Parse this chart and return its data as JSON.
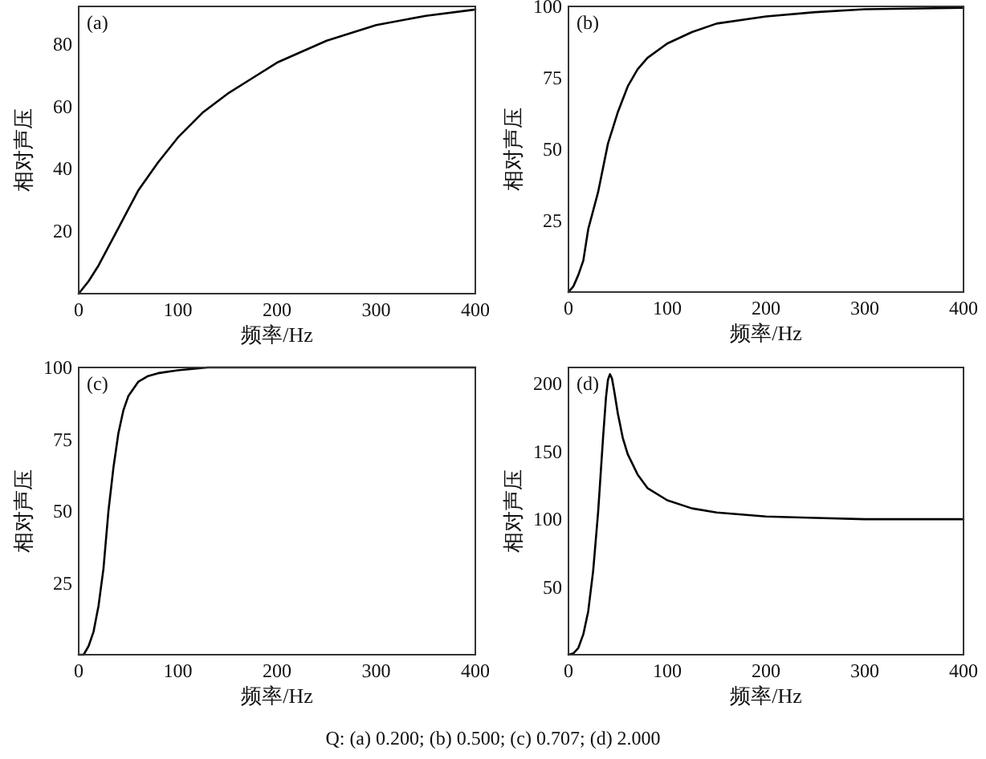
{
  "chart_data": [
    {
      "type": "line",
      "title": "(a)",
      "xlabel": "频率/Hz",
      "ylabel": "相对声压",
      "color": "#000000",
      "xlim": [
        0,
        400
      ],
      "ylim": [
        0,
        92
      ],
      "xticks": [
        0,
        100,
        200,
        300,
        400
      ],
      "yticks": [
        20,
        40,
        60,
        80
      ],
      "x": [
        0,
        10,
        20,
        30,
        40,
        50,
        60,
        80,
        100,
        125,
        150,
        175,
        200,
        250,
        300,
        350,
        400
      ],
      "values": [
        0,
        4,
        9,
        15,
        21,
        27,
        33,
        42,
        50,
        58,
        64,
        69,
        74,
        81,
        86,
        89,
        91
      ]
    },
    {
      "type": "line",
      "title": "(b)",
      "xlabel": "频率/Hz",
      "ylabel": "相对声压",
      "color": "#000000",
      "xlim": [
        0,
        400
      ],
      "ylim": [
        0,
        100
      ],
      "xticks": [
        0,
        100,
        200,
        300,
        400
      ],
      "yticks": [
        25,
        50,
        75,
        100
      ],
      "x": [
        0,
        5,
        10,
        15,
        20,
        30,
        40,
        50,
        60,
        70,
        80,
        100,
        125,
        150,
        200,
        250,
        300,
        400
      ],
      "values": [
        0,
        2,
        6,
        11,
        22,
        35,
        52,
        63,
        72,
        78,
        82,
        87,
        91,
        94,
        96.5,
        98,
        99,
        99.5
      ]
    },
    {
      "type": "line",
      "title": "(c)",
      "xlabel": "频率/Hz",
      "ylabel": "相对声压",
      "color": "#000000",
      "xlim": [
        0,
        400
      ],
      "ylim": [
        0,
        100
      ],
      "xticks": [
        0,
        100,
        200,
        300,
        400
      ],
      "yticks": [
        25,
        50,
        75,
        100
      ],
      "x": [
        0,
        5,
        10,
        15,
        20,
        25,
        30,
        35,
        40,
        45,
        50,
        60,
        70,
        80,
        100,
        130,
        400
      ],
      "values": [
        0,
        0,
        3,
        8,
        17,
        30,
        50,
        65,
        77,
        85,
        90,
        95,
        97,
        98,
        99,
        100,
        100
      ]
    },
    {
      "type": "line",
      "title": "(d)",
      "xlabel": "频率/Hz",
      "ylabel": "相对声压",
      "color": "#000000",
      "xlim": [
        0,
        400
      ],
      "ylim": [
        0,
        212
      ],
      "xticks": [
        0,
        100,
        200,
        300,
        400
      ],
      "yticks": [
        50,
        100,
        150,
        200
      ],
      "x": [
        0,
        5,
        10,
        15,
        20,
        25,
        30,
        35,
        38,
        40,
        42,
        44,
        46,
        50,
        55,
        60,
        70,
        80,
        100,
        125,
        150,
        200,
        250,
        300,
        400
      ],
      "values": [
        0,
        1,
        5,
        15,
        32,
        62,
        105,
        160,
        190,
        203,
        207,
        204,
        196,
        178,
        160,
        148,
        133,
        123,
        114,
        108,
        105,
        102,
        101,
        100,
        100
      ],
      "annotations": [
        "Q: (a) 0.200; (b) 0.500; (c) 0.707; (d) 2.000"
      ]
    }
  ]
}
